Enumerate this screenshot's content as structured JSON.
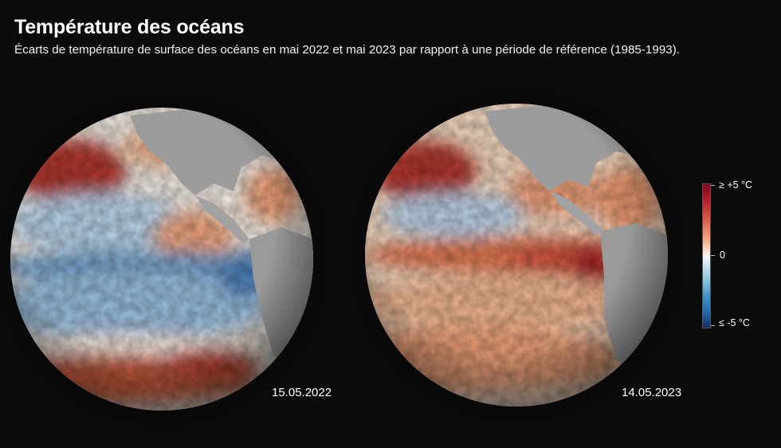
{
  "header": {
    "title": "Température des océans",
    "subtitle": "Écarts de température de surface des océans en mai 2022 et mai 2023 par rapport à une période de référence (1985-1993)."
  },
  "maps": [
    {
      "date": "15.05.2022",
      "phase": "cold-pacific"
    },
    {
      "date": "14.05.2023",
      "phase": "warm-pacific"
    }
  ],
  "legend": {
    "max_label": "≥ +5 °C",
    "mid_label": "0",
    "min_label": "≤ -5 °C",
    "colors": {
      "warm_max": "#7a0b22",
      "warm": "#d6604d",
      "neutral": "#f7f7f7",
      "cold": "#2166ac",
      "cold_max": "#1a2a60",
      "land": "#9a9a9a"
    }
  }
}
